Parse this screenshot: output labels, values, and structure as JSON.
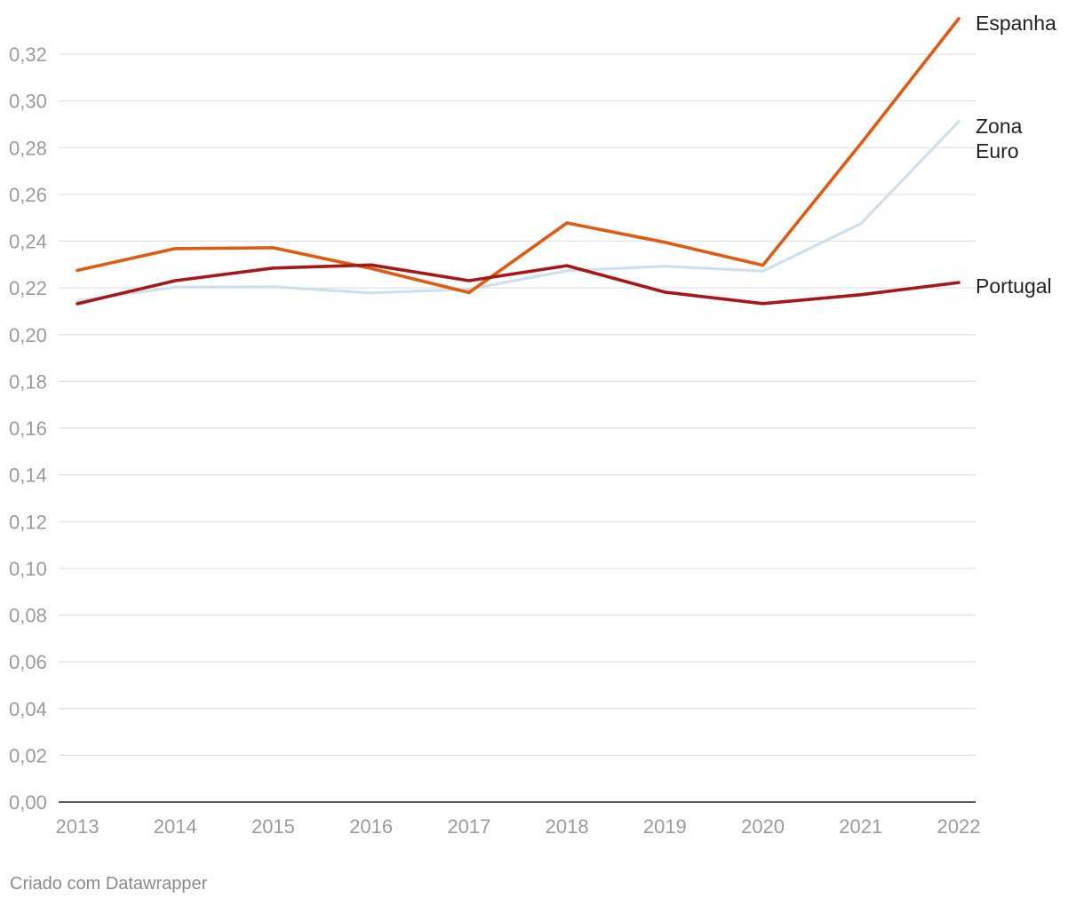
{
  "chart_data": {
    "type": "line",
    "title": "",
    "xlabel": "",
    "ylabel": "",
    "x": [
      2013,
      2014,
      2015,
      2016,
      2017,
      2018,
      2019,
      2020,
      2021,
      2022
    ],
    "x_tick_labels": [
      "2013",
      "2014",
      "2015",
      "2016",
      "2017",
      "2018",
      "2019",
      "2020",
      "2021",
      "2022"
    ],
    "ylim": [
      0,
      0.32
    ],
    "y_ticks": [
      0,
      0.02,
      0.04,
      0.06,
      0.08,
      0.1,
      0.12,
      0.14,
      0.16,
      0.18,
      0.2,
      0.22,
      0.24,
      0.26,
      0.28,
      0.3,
      0.32
    ],
    "y_tick_labels": [
      "0,00",
      "0,02",
      "0,04",
      "0,06",
      "0,08",
      "0,10",
      "0,12",
      "0,14",
      "0,16",
      "0,18",
      "0,20",
      "0,22",
      "0,24",
      "0,26",
      "0,28",
      "0,30",
      "0,32"
    ],
    "grid": true,
    "legend": "direct labels at right end of lines",
    "series": [
      {
        "name": "Zona Euro",
        "label_lines": [
          "Zona",
          "Euro"
        ],
        "color": "#d0dfec",
        "values": [
          0.2145,
          0.2203,
          0.2205,
          0.2178,
          0.2195,
          0.2273,
          0.2293,
          0.2272,
          0.2475,
          0.2912
        ]
      },
      {
        "name": "Espanha",
        "label_lines": [
          "Espanha"
        ],
        "color": "#e05a12",
        "values": [
          0.2275,
          0.2368,
          0.2372,
          0.2283,
          0.218,
          0.2478,
          0.2395,
          0.2297,
          0.2817,
          0.3352
        ]
      },
      {
        "name": "Portugal",
        "label_lines": [
          "Portugal"
        ],
        "color": "#a91618",
        "values": [
          0.2132,
          0.2231,
          0.2285,
          0.2298,
          0.2231,
          0.2295,
          0.2182,
          0.2133,
          0.2171,
          0.2223
        ]
      }
    ]
  },
  "footer": {
    "credit": "Criado com Datawrapper"
  }
}
